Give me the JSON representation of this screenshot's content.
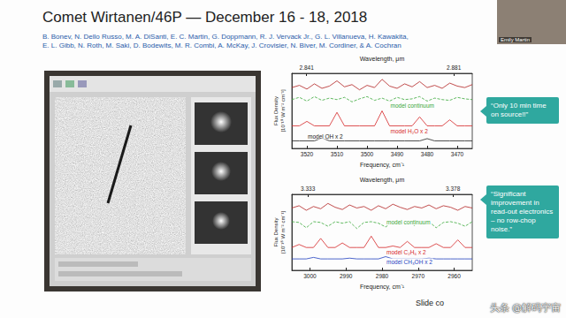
{
  "slide": {
    "title": "Comet Wirtanen/46P — December 16 - 18, 2018",
    "authors": [
      "B. Bonev, N. Dello Russo, M. A. DiSanti, E. C. Martin, G. Doppmann, R. J. Vervack Jr., G. L. Villanueva, H. Kawakita,",
      "E. L. Gibb, N. Roth, M. Saki, D. Bodewits, M. R. Combi, A. McKay, J. Crovisier, N. Biver, M. Cordiner, & A. Cochran"
    ],
    "callouts": [
      "“Only 10 min time on source!!”",
      "“Significant improvement in read-out electronics – no row-chop noise.”"
    ],
    "credit": "Slide co",
    "watermark": "头条 @解码宇宙",
    "speaker": "Emily Martin"
  },
  "chart_data": [
    {
      "type": "line",
      "x_label": "Frequency, cm⁻¹",
      "x2_label": "Wavelength, μm",
      "y_label": "Flux Density",
      "y_unit": "[10⁻¹⁸ W m⁻² cm⁻¹]",
      "x": [
        3525,
        3522.5,
        3520,
        3517.5,
        3515,
        3512.5,
        3510,
        3507.5,
        3505,
        3502.5,
        3500,
        3497.5,
        3495,
        3492.5,
        3490,
        3487.5,
        3485,
        3482.5,
        3480,
        3477.5,
        3475,
        3472.5,
        3470,
        3467.5,
        3465
      ],
      "xlim": [
        3525,
        3465
      ],
      "xticks": [
        3520,
        3510,
        3500,
        3490,
        3480,
        3470
      ],
      "x2lim": [
        2.837,
        2.886
      ],
      "x2ticks": [
        2.841,
        2.881
      ],
      "ylim": [
        0,
        10
      ],
      "grid": false,
      "tick_labels": "x",
      "series": [
        {
          "color": "#b22222",
          "line_style": "solid",
          "values": [
            8.1,
            8.4,
            7.9,
            8.6,
            8.0,
            8.3,
            9.0,
            8.2,
            8.5,
            7.8,
            8.4,
            8.1,
            9.2,
            8.3,
            8.0,
            8.6,
            8.2,
            8.9,
            8.1,
            8.4,
            8.0,
            8.7,
            8.3,
            8.1,
            8.5
          ]
        },
        {
          "name": "model continuum",
          "color": "#3aa83a",
          "line_style": "dashed",
          "values": [
            6.5,
            6.8,
            6.3,
            6.9,
            6.4,
            6.7,
            6.5,
            6.8,
            6.2,
            6.6,
            6.9,
            6.4,
            6.7,
            6.3,
            6.8,
            6.5,
            6.6,
            6.9,
            6.3,
            6.7,
            6.5,
            6.4,
            6.8,
            6.6,
            6.5
          ]
        },
        {
          "name": "model H₂O x 2",
          "color": "#d62728",
          "line_style": "solid",
          "values": [
            3.0,
            3.0,
            3.6,
            3.0,
            3.0,
            3.0,
            4.8,
            3.0,
            3.0,
            3.0,
            3.0,
            3.0,
            5.0,
            3.0,
            3.0,
            3.0,
            3.0,
            4.2,
            3.0,
            3.0,
            3.0,
            3.8,
            3.0,
            3.0,
            3.0
          ]
        },
        {
          "name": "model OH x 2",
          "color": "#222222",
          "line_style": "solid",
          "values": [
            1.0,
            1.0,
            1.0,
            1.0,
            1.4,
            1.0,
            1.0,
            1.0,
            1.0,
            1.0,
            1.0,
            1.0,
            1.0,
            1.0,
            1.0,
            1.0,
            1.0,
            1.0,
            1.3,
            1.0,
            1.0,
            1.0,
            1.0,
            1.0,
            1.0
          ]
        }
      ]
    },
    {
      "type": "line",
      "x_label": "Frequency, cm⁻¹",
      "x2_label": "Wavelength, μm",
      "y_label": "Flux Density",
      "y_unit": "[10⁻¹⁸ W m⁻² cm⁻¹]",
      "x": [
        3005,
        3003,
        3001,
        2999,
        2997,
        2995,
        2993,
        2991,
        2989,
        2987,
        2985,
        2983,
        2981,
        2979,
        2977,
        2975,
        2973,
        2971,
        2969,
        2967,
        2965,
        2963,
        2961,
        2959,
        2957,
        2955
      ],
      "xlim": [
        3005,
        2955
      ],
      "xticks": [
        3000,
        2990,
        2980,
        2970,
        2960
      ],
      "x2lim": [
        3.328,
        3.384
      ],
      "x2ticks": [
        3.333,
        3.378
      ],
      "ylim": [
        0,
        10
      ],
      "grid": false,
      "tick_labels": "x",
      "series": [
        {
          "color": "#b22222",
          "line_style": "solid",
          "values": [
            8.2,
            8.5,
            7.9,
            8.4,
            8.1,
            8.8,
            8.3,
            8.0,
            8.6,
            8.2,
            8.4,
            7.9,
            8.5,
            8.1,
            8.7,
            8.3,
            8.0,
            8.4,
            8.2,
            8.6,
            8.1,
            8.5,
            8.3,
            7.9,
            8.4,
            8.2
          ]
        },
        {
          "name": "model continuum",
          "color": "#3aa83a",
          "line_style": "dashed",
          "values": [
            6.4,
            6.3,
            5.6,
            6.4,
            6.3,
            5.8,
            6.4,
            6.2,
            6.4,
            5.5,
            6.3,
            6.4,
            6.2,
            5.7,
            6.4,
            6.3,
            6.4,
            5.9,
            6.3,
            6.4,
            5.6,
            6.3,
            6.4,
            6.2,
            5.8,
            6.4
          ]
        },
        {
          "name": "model C₂H₆ x 2",
          "color": "#d62728",
          "line_style": "solid",
          "values": [
            3.0,
            3.4,
            3.0,
            3.0,
            4.2,
            3.0,
            3.0,
            3.6,
            3.0,
            3.0,
            3.0,
            4.5,
            3.0,
            3.0,
            3.2,
            3.0,
            3.8,
            3.0,
            3.0,
            3.0,
            3.5,
            3.0,
            3.0,
            4.0,
            3.0,
            3.0
          ]
        },
        {
          "name": "model CH₃OH x 2",
          "color": "#1f3fbf",
          "line_style": "solid",
          "values": [
            1.5,
            1.5,
            1.5,
            1.7,
            1.5,
            1.5,
            1.5,
            1.5,
            1.6,
            1.5,
            1.5,
            1.5,
            1.5,
            1.8,
            1.5,
            1.5,
            1.5,
            1.5,
            1.5,
            1.6,
            1.5,
            1.5,
            1.5,
            1.5,
            1.5,
            1.5
          ]
        }
      ]
    }
  ]
}
